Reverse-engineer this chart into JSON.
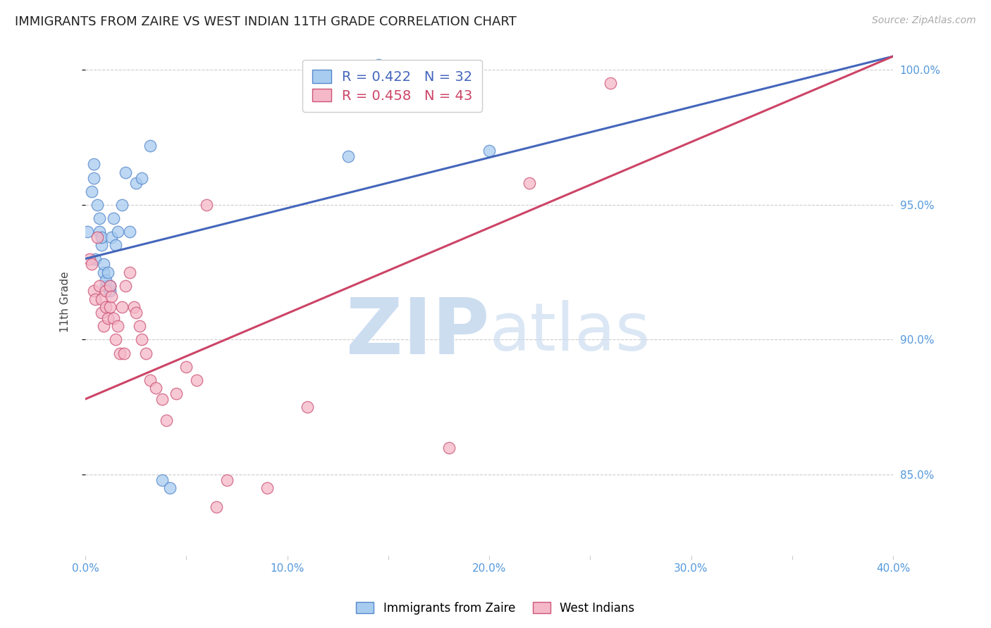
{
  "title": "IMMIGRANTS FROM ZAIRE VS WEST INDIAN 11TH GRADE CORRELATION CHART",
  "source": "Source: ZipAtlas.com",
  "ylabel": "11th Grade",
  "xlim": [
    0.0,
    0.4
  ],
  "ylim": [
    0.82,
    1.008
  ],
  "ytick_labels": [
    "85.0%",
    "90.0%",
    "95.0%",
    "100.0%"
  ],
  "ytick_vals": [
    0.85,
    0.9,
    0.95,
    1.0
  ],
  "xtick_labels": [
    "0.0%",
    "",
    "10.0%",
    "",
    "20.0%",
    "",
    "30.0%",
    "",
    "40.0%"
  ],
  "xtick_vals": [
    0.0,
    0.05,
    0.1,
    0.15,
    0.2,
    0.25,
    0.3,
    0.35,
    0.4
  ],
  "blue_color": "#A8CCF0",
  "pink_color": "#F5B8C8",
  "blue_edge_color": "#5588CC",
  "pink_edge_color": "#CC5577",
  "blue_line_color": "#4466BB",
  "pink_line_color": "#CC4466",
  "R_blue": 0.422,
  "N_blue": 32,
  "R_pink": 0.458,
  "N_pink": 43,
  "legend_label_blue": "Immigrants from Zaire",
  "legend_label_pink": "West Indians",
  "blue_trend_x0": 0.0,
  "blue_trend_y0": 0.93,
  "blue_trend_x1": 0.4,
  "blue_trend_y1": 1.005,
  "pink_trend_x0": 0.0,
  "pink_trend_y0": 0.878,
  "pink_trend_x1": 0.4,
  "pink_trend_y1": 1.005,
  "blue_x": [
    0.001,
    0.003,
    0.004,
    0.004,
    0.005,
    0.006,
    0.007,
    0.007,
    0.008,
    0.008,
    0.009,
    0.009,
    0.01,
    0.01,
    0.011,
    0.012,
    0.012,
    0.013,
    0.014,
    0.015,
    0.016,
    0.018,
    0.02,
    0.022,
    0.025,
    0.028,
    0.032,
    0.038,
    0.042,
    0.13,
    0.145,
    0.2
  ],
  "blue_y": [
    0.94,
    0.955,
    0.96,
    0.965,
    0.93,
    0.95,
    0.94,
    0.945,
    0.935,
    0.938,
    0.925,
    0.928,
    0.92,
    0.922,
    0.925,
    0.918,
    0.92,
    0.938,
    0.945,
    0.935,
    0.94,
    0.95,
    0.962,
    0.94,
    0.958,
    0.96,
    0.972,
    0.848,
    0.845,
    0.968,
    1.002,
    0.97
  ],
  "pink_x": [
    0.002,
    0.003,
    0.004,
    0.005,
    0.006,
    0.007,
    0.008,
    0.008,
    0.009,
    0.01,
    0.01,
    0.011,
    0.012,
    0.012,
    0.013,
    0.014,
    0.015,
    0.016,
    0.017,
    0.018,
    0.019,
    0.02,
    0.022,
    0.024,
    0.025,
    0.027,
    0.028,
    0.03,
    0.032,
    0.035,
    0.038,
    0.04,
    0.045,
    0.05,
    0.055,
    0.06,
    0.065,
    0.07,
    0.09,
    0.11,
    0.18,
    0.22,
    0.26
  ],
  "pink_y": [
    0.93,
    0.928,
    0.918,
    0.915,
    0.938,
    0.92,
    0.91,
    0.915,
    0.905,
    0.912,
    0.918,
    0.908,
    0.92,
    0.912,
    0.916,
    0.908,
    0.9,
    0.905,
    0.895,
    0.912,
    0.895,
    0.92,
    0.925,
    0.912,
    0.91,
    0.905,
    0.9,
    0.895,
    0.885,
    0.882,
    0.878,
    0.87,
    0.88,
    0.89,
    0.885,
    0.95,
    0.838,
    0.848,
    0.845,
    0.875,
    0.86,
    0.958,
    0.995
  ],
  "watermark_zip": "ZIP",
  "watermark_atlas": "atlas",
  "background_color": "#FFFFFF",
  "grid_color": "#CCCCCC"
}
